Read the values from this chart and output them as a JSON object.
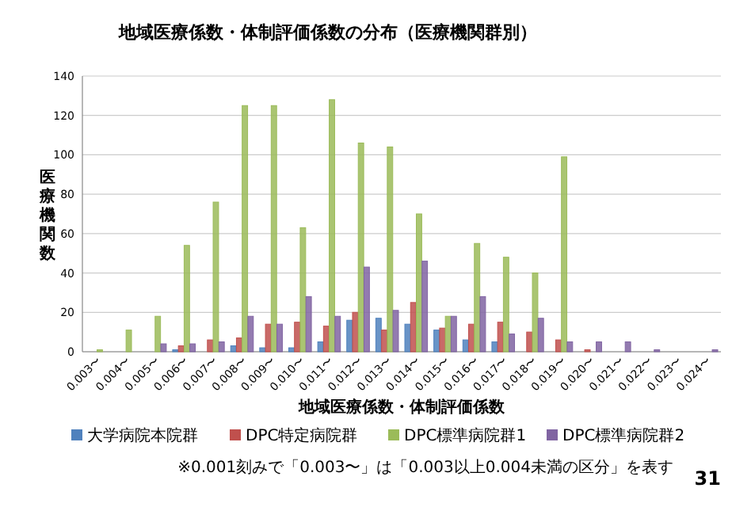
{
  "chart_data": {
    "type": "bar",
    "title": "地域医療係数・体制評価係数の分布（医療機関群別）",
    "xlabel": "地域医療係数・体制評価係数",
    "ylabel": "医療機関数",
    "categories": [
      "0.003〜",
      "0.004〜",
      "0.005〜",
      "0.006〜",
      "0.007〜",
      "0.008〜",
      "0.009〜",
      "0.010〜",
      "0.011〜",
      "0.012〜",
      "0.013〜",
      "0.014〜",
      "0.015〜",
      "0.016〜",
      "0.017〜",
      "0.018〜",
      "0.019〜",
      "0.020〜",
      "0.021〜",
      "0.022〜",
      "0.023〜",
      "0.024〜"
    ],
    "series": [
      {
        "name": "大学病院本院群",
        "color": "#4f81bd",
        "values": [
          0,
          0,
          0,
          1,
          0,
          3,
          2,
          2,
          5,
          16,
          17,
          14,
          11,
          6,
          5,
          0,
          0,
          0,
          0,
          0,
          0,
          0
        ]
      },
      {
        "name": "DPC特定病院群",
        "color": "#c0504d",
        "values": [
          0,
          0,
          0,
          3,
          6,
          7,
          14,
          15,
          13,
          20,
          11,
          25,
          12,
          14,
          15,
          10,
          6,
          1,
          0,
          0,
          0,
          0
        ]
      },
      {
        "name": "DPC標準病院群1",
        "color": "#9bbb59",
        "values": [
          1,
          11,
          18,
          54,
          76,
          125,
          125,
          63,
          128,
          106,
          104,
          70,
          18,
          55,
          48,
          40,
          99,
          0,
          0,
          0,
          0,
          0
        ]
      },
      {
        "name": "DPC標準病院群2",
        "color": "#8064a2",
        "values": [
          0,
          0,
          4,
          4,
          5,
          18,
          14,
          28,
          18,
          43,
          21,
          46,
          18,
          28,
          9,
          17,
          5,
          5,
          5,
          1,
          0,
          1
        ]
      }
    ],
    "ylim": [
      0,
      140
    ],
    "yticks": [
      0,
      20,
      40,
      60,
      80,
      100,
      120,
      140
    ],
    "grid": "y",
    "legend": "bottom",
    "annotations": [
      "※0.001刻みで「0.003〜」は「0.003以上0.004未満の区分」を表す",
      "31"
    ]
  }
}
